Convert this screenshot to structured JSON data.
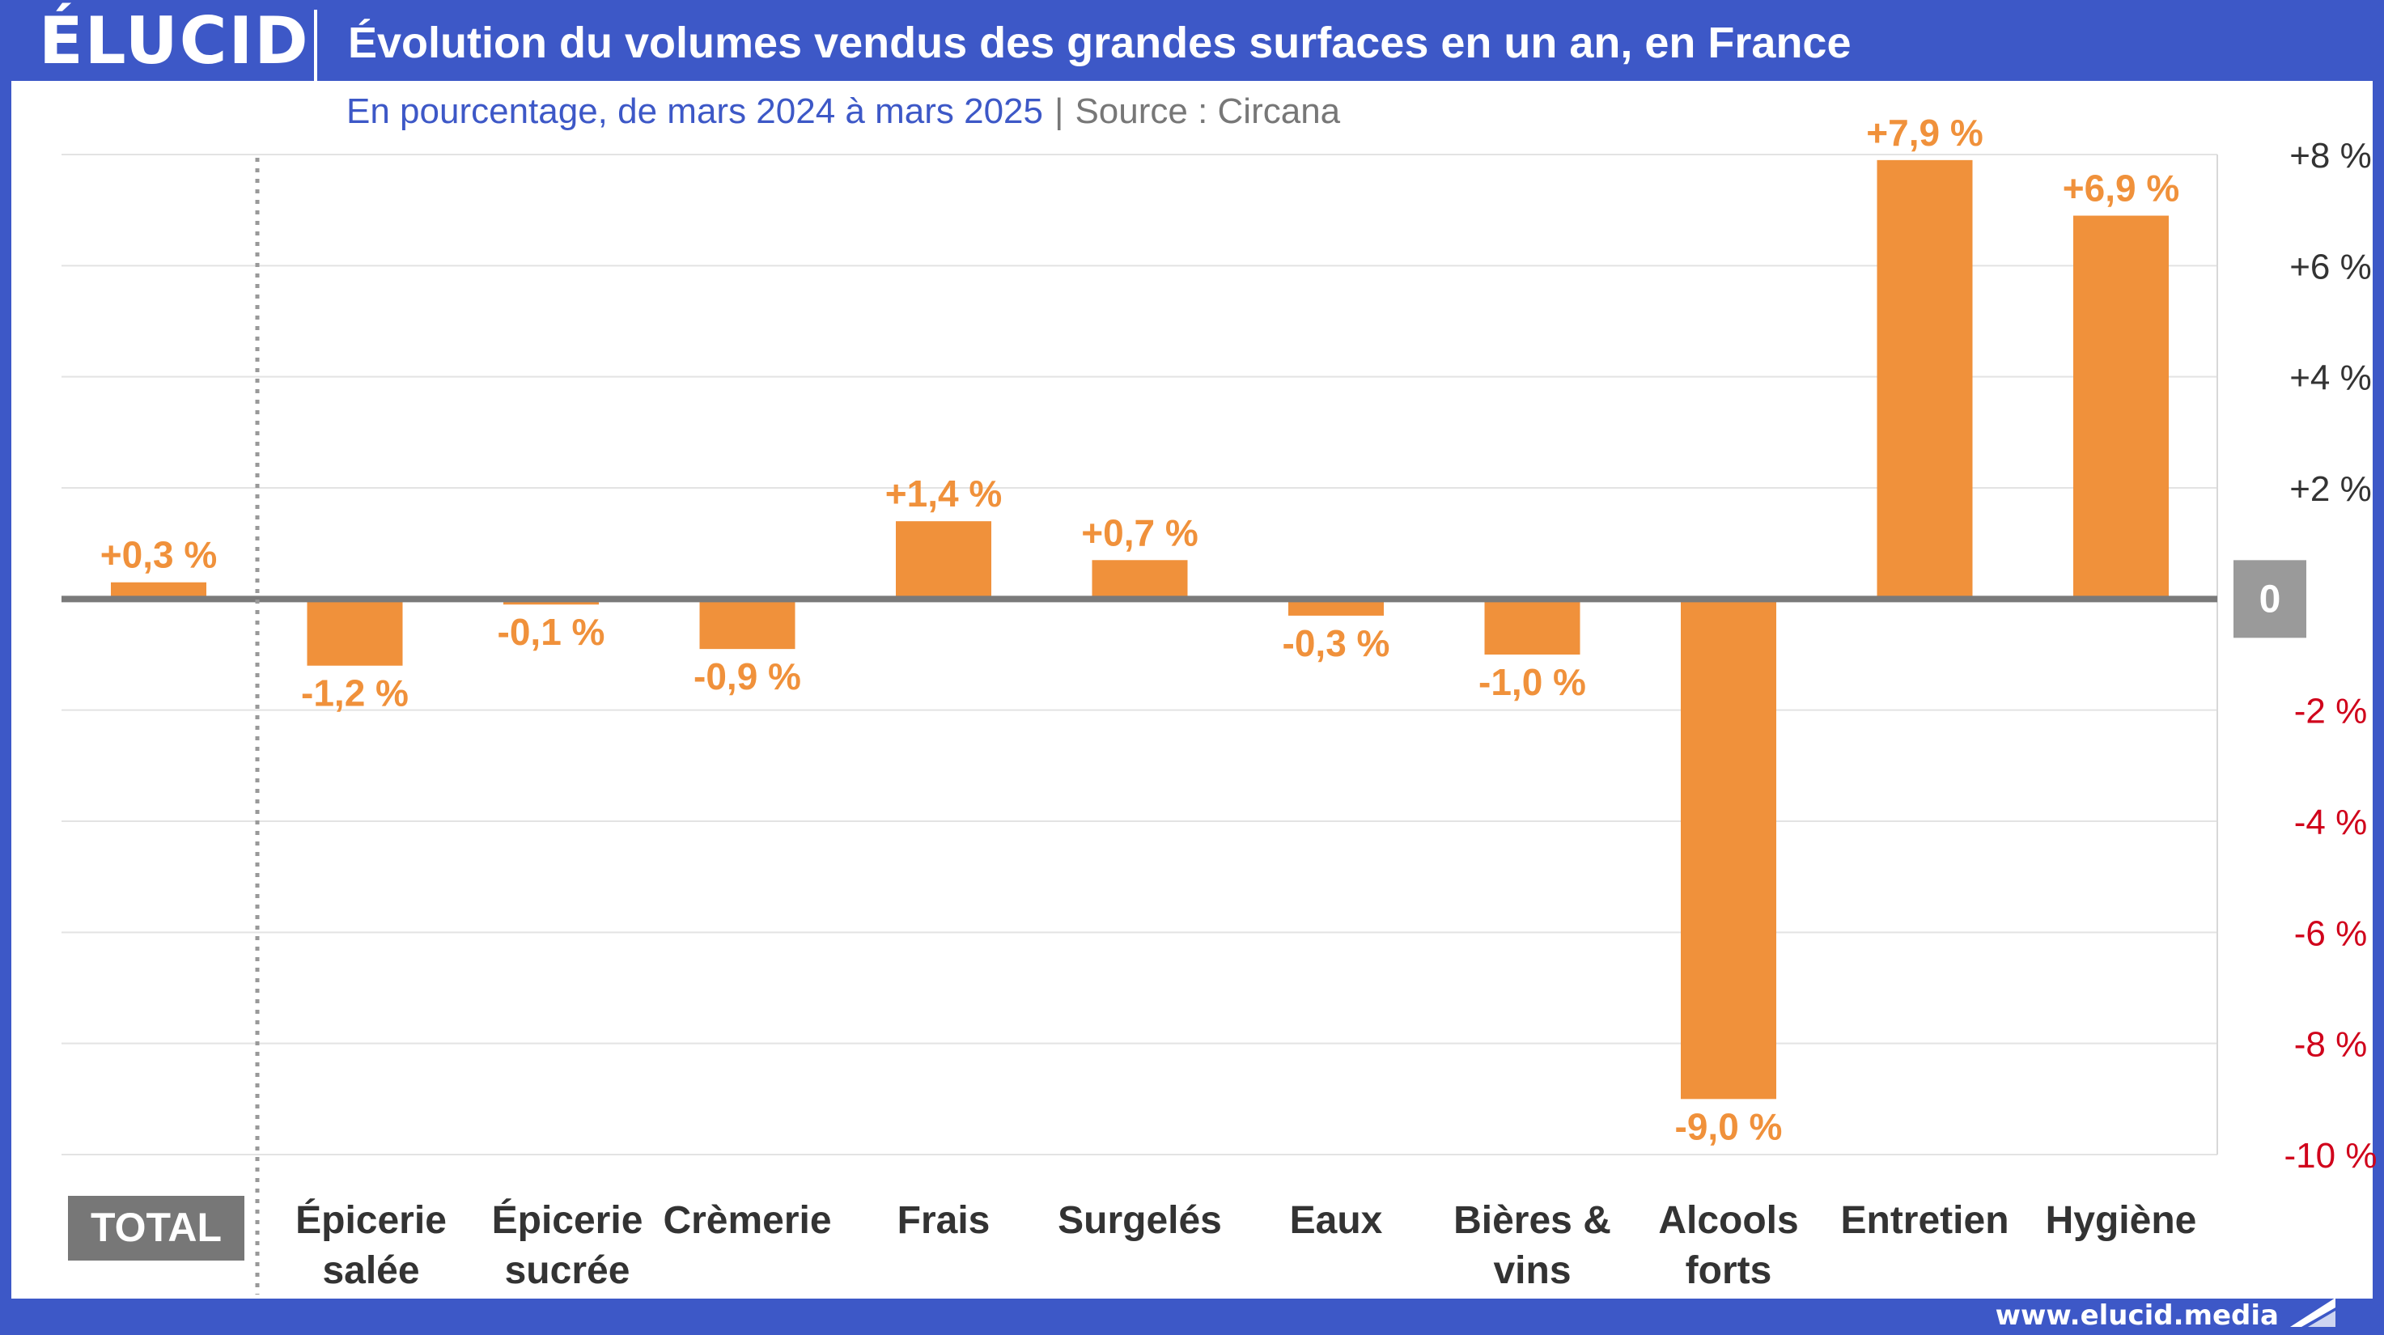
{
  "brand": {
    "logo_text": "ÉLUCID",
    "url": "www.elucid.media"
  },
  "header": {
    "title": "Évolution du volumes vendus des grandes surfaces en un an, en France",
    "subtitle": "En pourcentage, de mars 2024 à mars 2025",
    "separator": "|",
    "source": "Source : Circana"
  },
  "colors": {
    "brand_blue": "#3d58c7",
    "bar": "#f0913b",
    "negative_tick": "#d0021b",
    "zero_badge": "#9a9a9a",
    "total_badge": "#777777"
  },
  "chart_data": {
    "type": "bar",
    "categories": [
      "TOTAL",
      "Épicerie salée",
      "Épicerie sucrée",
      "Crèmerie",
      "Frais",
      "Surgelés",
      "Eaux",
      "Bières & vins",
      "Alcools forts",
      "Entretien",
      "Hygiène"
    ],
    "category_lines": [
      [
        "TOTAL"
      ],
      [
        "Épicerie",
        "salée"
      ],
      [
        "Épicerie",
        "sucrée"
      ],
      [
        "Crèmerie"
      ],
      [
        "Frais"
      ],
      [
        "Surgelés"
      ],
      [
        "Eaux"
      ],
      [
        "Bières &",
        "vins"
      ],
      [
        "Alcools",
        "forts"
      ],
      [
        "Entretien"
      ],
      [
        "Hygiène"
      ]
    ],
    "values": [
      0.3,
      -1.2,
      -0.1,
      -0.9,
      1.4,
      0.7,
      -0.3,
      -1.0,
      -9.0,
      7.9,
      6.9
    ],
    "value_labels": [
      "+0,3 %",
      "-1,2 %",
      "-0,1 %",
      "-0,9 %",
      "+1,4 %",
      "+0,7 %",
      "-0,3 %",
      "-1,0 %",
      "-9,0 %",
      "+7,9 %",
      "+6,9 %"
    ],
    "ylim": [
      -10,
      8
    ],
    "yticks": [
      8,
      6,
      4,
      2,
      0,
      -2,
      -4,
      -6,
      -8,
      -10
    ],
    "ytick_labels": [
      "+8 %",
      "+6 %",
      "+4 %",
      "+2 %",
      "0",
      "-2 %",
      "-4 %",
      "-6 %",
      "-8 %",
      "-10 %"
    ],
    "grid": true,
    "y_axis_side": "right",
    "total_separated": true
  }
}
